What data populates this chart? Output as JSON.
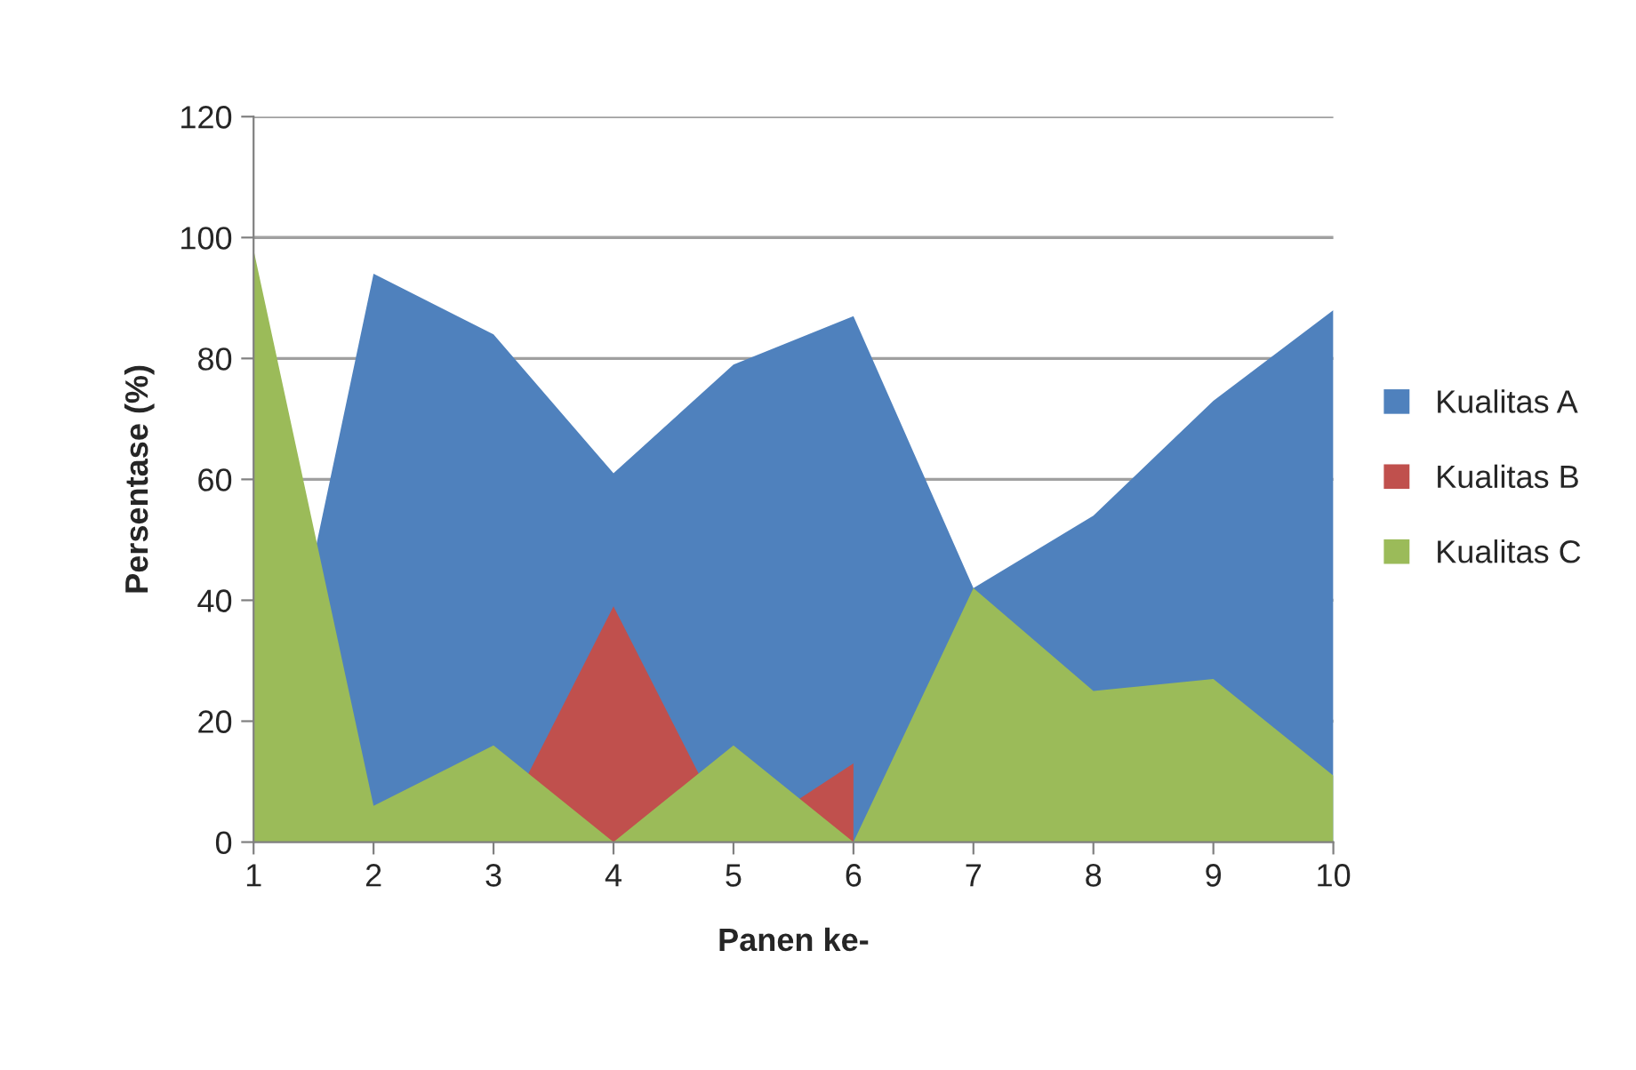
{
  "chart_data": {
    "type": "area",
    "xlabel": "Panen ke-",
    "ylabel": "Persentase (%)",
    "x": [
      1,
      2,
      3,
      4,
      5,
      6,
      7,
      8,
      9,
      10
    ],
    "series": [
      {
        "name": "Kualitas A",
        "color": "#4f81bd",
        "values": [
          0,
          94,
          84,
          61,
          79,
          87,
          42,
          54,
          73,
          88
        ]
      },
      {
        "name": "Kualitas B",
        "color": "#c0504d",
        "values": [
          0,
          0,
          0,
          39,
          0,
          13,
          null,
          null,
          null,
          null
        ]
      },
      {
        "name": "Kualitas C",
        "color": "#9bbb59",
        "values": [
          98,
          6,
          16,
          0,
          16,
          0,
          42,
          25,
          27,
          11
        ]
      }
    ],
    "xlim": [
      1,
      10
    ],
    "xticks": [
      1,
      2,
      3,
      4,
      5,
      6,
      7,
      8,
      9,
      10
    ],
    "ylim": [
      0,
      120
    ],
    "yticks": [
      0,
      20,
      40,
      60,
      80,
      100,
      120
    ],
    "grid": "y",
    "legend": "right"
  }
}
